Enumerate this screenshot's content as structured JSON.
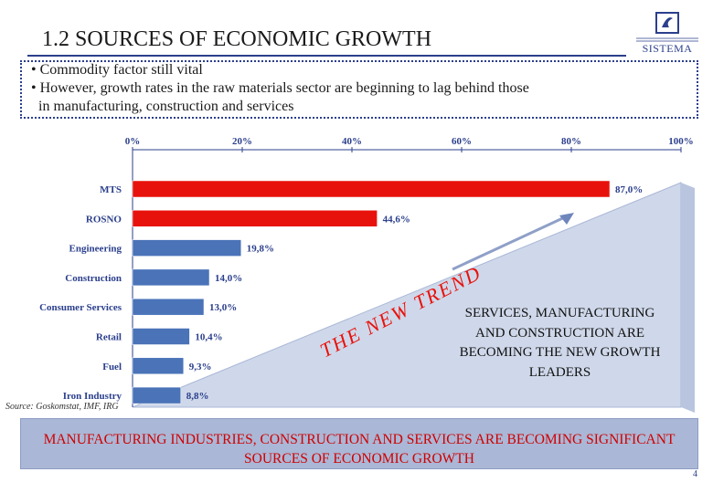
{
  "title": "1.2 SOURCES OF ECONOMIC GROWTH",
  "logo": {
    "text": "SISTEMA",
    "icon": "sistema-logo-icon",
    "color": "#2b3f8c"
  },
  "bullets": [
    "• Commodity factor still vital",
    "• However, growth rates in the raw materials sector are beginning to lag behind those",
    "  in manufacturing, construction and services"
  ],
  "chart_data": {
    "type": "bar",
    "orientation": "horizontal",
    "categories": [
      "MTS",
      "ROSNO",
      "Engineering",
      "Construction",
      "Consumer Services",
      "Retail",
      "Fuel",
      "Iron Industry"
    ],
    "values": [
      87.0,
      44.6,
      19.8,
      14.0,
      13.0,
      10.4,
      9.3,
      8.8
    ],
    "value_labels": [
      "87,0%",
      "44,6%",
      "19,8%",
      "14,0%",
      "13,0%",
      "10,4%",
      "9,3%",
      "8,8%"
    ],
    "bar_colors": [
      "#e8120c",
      "#e8120c",
      "#4a73b8",
      "#4a73b8",
      "#4a73b8",
      "#4a73b8",
      "#4a73b8",
      "#4a73b8"
    ],
    "xlim": [
      0,
      100
    ],
    "xticks": [
      "0%",
      "20%",
      "40%",
      "60%",
      "80%",
      "100%"
    ],
    "grid": false,
    "source": "Source: Goskomstat, IMF, IRG"
  },
  "trend_label": "THE NEW TREND",
  "services_text": "SERVICES, MANUFACTURING AND CONSTRUCTION ARE BECOMING THE NEW GROWTH LEADERS",
  "bottom_banner": "MANUFACTURING INDUSTRIES, CONSTRUCTION AND SERVICES ARE BECOMING SIGNIFICANT SOURCES OF ECONOMIC GROWTH",
  "page_number": "4",
  "colors": {
    "accent": "#2b3f8c",
    "highlight": "#e8120c",
    "bar_blue": "#4a73b8",
    "banner_bg": "#aab7d6",
    "banner_text": "#d00000"
  }
}
